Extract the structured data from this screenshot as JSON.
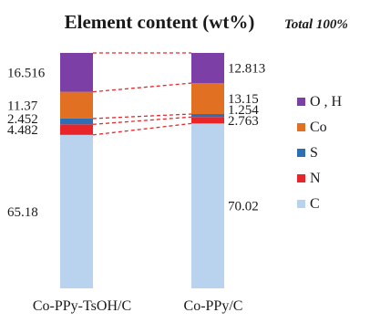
{
  "chart_data": {
    "type": "stacked-bar",
    "title": "Element content (wt%)",
    "note": "Total 100%",
    "categories": [
      "Co-PPy-TsOH/C",
      "Co-PPy/C"
    ],
    "series": [
      {
        "name": "C",
        "color": "#b9d3ef",
        "values": [
          65.18,
          70.02
        ],
        "labels": [
          "65.18",
          "70.02"
        ]
      },
      {
        "name": "N",
        "color": "#e8262a",
        "values": [
          4.482,
          2.763
        ],
        "labels": [
          "4.482",
          "2.763"
        ]
      },
      {
        "name": "S",
        "color": "#2e6eb5",
        "values": [
          2.452,
          1.254
        ],
        "labels": [
          "2.452",
          "1.254"
        ]
      },
      {
        "name": "Co",
        "color": "#e27022",
        "values": [
          11.37,
          13.15
        ],
        "labels": [
          "11.37",
          "13.15"
        ]
      },
      {
        "name": "O , H",
        "color": "#7b3fa6",
        "values": [
          16.516,
          12.813
        ],
        "labels": [
          "16.516",
          "12.813"
        ]
      }
    ],
    "legend_order": [
      "O , H",
      "Co",
      "S",
      "N",
      "C"
    ],
    "legend_position": "right",
    "connectors": "dashed",
    "connector_color": "#e8262a",
    "total": 100
  }
}
